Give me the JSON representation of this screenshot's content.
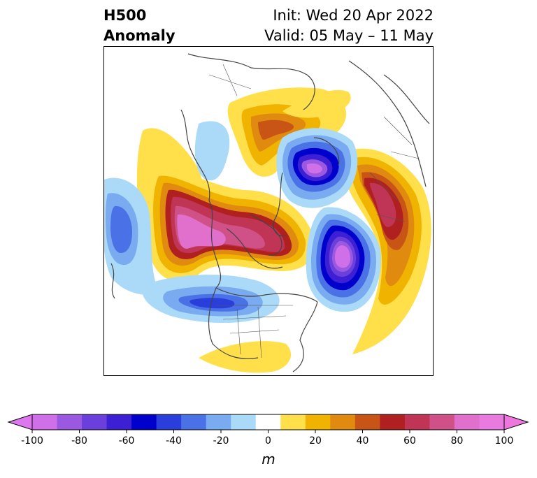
{
  "header": {
    "title_line1": "H500",
    "title_line2": "Anomaly",
    "init": "Init: Wed 20 Apr 2022",
    "valid": "Valid: 05 May – 11 May"
  },
  "map": {
    "projection": "north-polar-stereographic",
    "field": "500 hPa geopotential height anomaly"
  },
  "colorbar": {
    "unit": "m",
    "ticks": [
      "-100",
      "-80",
      "-60",
      "-40",
      "-20",
      "0",
      "20",
      "40",
      "60",
      "80",
      "100"
    ],
    "under_color": "#dd77ee",
    "over_color": "#ee77dd",
    "colors": [
      "#d070e8",
      "#9b59e2",
      "#6a3fdb",
      "#3d1fd4",
      "#0000cc",
      "#2a3edb",
      "#4a72e6",
      "#7aaaef",
      "#aadaf8",
      "#ffffff",
      "#ffe04a",
      "#f0b400",
      "#e08a10",
      "#c85515",
      "#b02020",
      "#c03555",
      "#d05088",
      "#e070cc",
      "#e87ae0"
    ]
  }
}
